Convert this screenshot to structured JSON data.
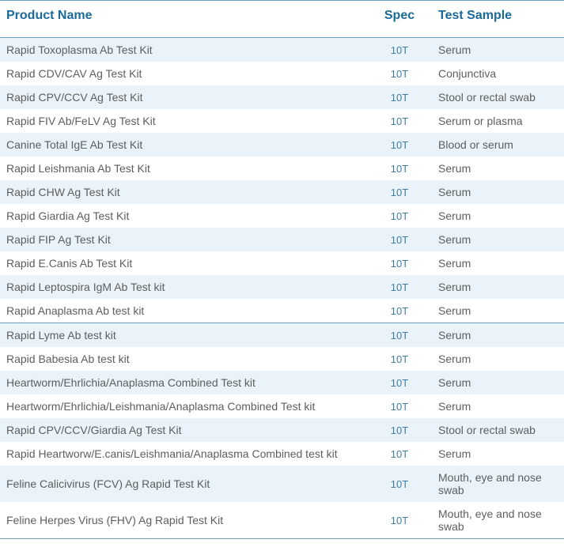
{
  "colors": {
    "header_text": "#1a6a9a",
    "header_rule": "#6fa0bf",
    "row_bg_a": "#e9f3f9",
    "row_bg_b": "#ffffff",
    "body_text": "#5e5e5e",
    "spec_text": "#3e7ea5",
    "group_rule": "#6fa0bf",
    "header_fontsize": "16px",
    "body_fontsize": "14px"
  },
  "columns": {
    "product": "Product Name",
    "spec": "Spec",
    "sample": "Test Sample"
  },
  "rows": [
    {
      "product": "Rapid Toxoplasma Ab Test Kit",
      "spec": "10T",
      "sample": "Serum",
      "sep_after": false
    },
    {
      "product": "Rapid CDV/CAV Ag Test Kit",
      "spec": "10T",
      "sample": "Conjunctiva",
      "sep_after": false
    },
    {
      "product": "Rapid CPV/CCV Ag Test Kit",
      "spec": "10T",
      "sample": "Stool or rectal swab",
      "sep_after": false
    },
    {
      "product": "Rapid FIV Ab/FeLV Ag Test Kit",
      "spec": "10T",
      "sample": "Serum or plasma",
      "sep_after": false
    },
    {
      "product": "Canine Total IgE Ab Test Kit",
      "spec": "10T",
      "sample": "Blood or serum",
      "sep_after": false
    },
    {
      "product": "Rapid Leishmania Ab Test Kit",
      "spec": "10T",
      "sample": "Serum",
      "sep_after": false
    },
    {
      "product": "Rapid CHW Ag Test Kit",
      "spec": "10T",
      "sample": "Serum",
      "sep_after": false
    },
    {
      "product": "Rapid Giardia Ag Test Kit",
      "spec": "10T",
      "sample": "Serum",
      "sep_after": false
    },
    {
      "product": "Rapid FIP Ag Test Kit",
      "spec": "10T",
      "sample": "Serum",
      "sep_after": false
    },
    {
      "product": "Rapid E.Canis Ab Test Kit",
      "spec": "10T",
      "sample": "Serum",
      "sep_after": false
    },
    {
      "product": "Rapid Leptospira IgM Ab Test kit",
      "spec": "10T",
      "sample": "Serum",
      "sep_after": false
    },
    {
      "product": "Rapid Anaplasma Ab test kit",
      "spec": "10T",
      "sample": "Serum",
      "sep_after": true
    },
    {
      "product": "Rapid Lyme Ab test kit",
      "spec": "10T",
      "sample": "Serum",
      "sep_after": false
    },
    {
      "product": "Rapid Babesia Ab test kit",
      "spec": "10T",
      "sample": "Serum",
      "sep_after": false
    },
    {
      "product": "Heartworm/Ehrlichia/Anaplasma Combined Test kit",
      "spec": "10T",
      "sample": "Serum",
      "sep_after": false
    },
    {
      "product": "Heartworm/Ehrlichia/Leishmania/Anaplasma Combined Test kit",
      "spec": "10T",
      "sample": "Serum",
      "sep_after": false
    },
    {
      "product": "Rapid CPV/CCV/Giardia Ag Test Kit",
      "spec": "10T",
      "sample": "Stool or rectal swab",
      "sep_after": false
    },
    {
      "product": "Rapid Heartworw/E.canis/Leishmania/Anaplasma Combined test kit",
      "spec": "10T",
      "sample": "Serum",
      "sep_after": false
    },
    {
      "product": "Feline Calicivirus (FCV) Ag Rapid Test Kit",
      "spec": "10T",
      "sample": "Mouth, eye and nose swab",
      "sep_after": false
    },
    {
      "product": "Feline Herpes Virus (FHV) Ag Rapid Test Kit",
      "spec": "10T",
      "sample": "Mouth, eye and nose swab",
      "sep_after": false
    }
  ]
}
